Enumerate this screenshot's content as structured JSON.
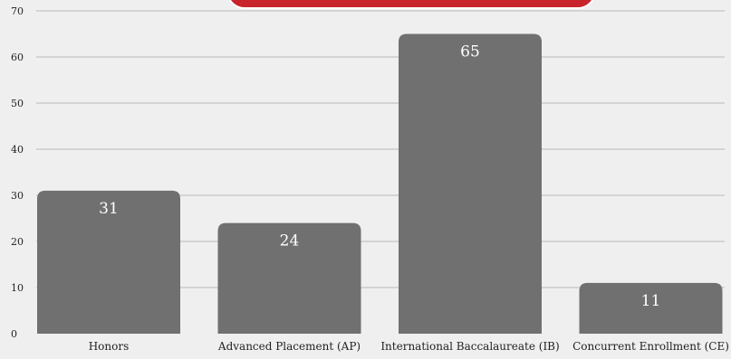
{
  "chart_data": {
    "type": "bar",
    "categories": [
      "Honors",
      "Advanced Placement (AP)",
      "International Baccalaureate (IB)",
      "Concurrent Enrollment (CE)"
    ],
    "values": [
      31,
      24,
      65,
      11
    ],
    "value_labels": [
      "31",
      "24",
      "65",
      "11"
    ],
    "ylim": [
      0,
      70
    ],
    "yticks": [
      0,
      10,
      20,
      30,
      40,
      50,
      60,
      70
    ],
    "ytick_labels": [
      "0",
      "10",
      "20",
      "30",
      "40",
      "50",
      "60",
      "70"
    ],
    "grid": true,
    "title": "",
    "xlabel": "",
    "ylabel": ""
  },
  "colors": {
    "background": "#efefef",
    "bar": "#707070",
    "gridline": "#b9b9b9",
    "banner": "#c8242c",
    "value_label": "#ffffff",
    "axis_text": "#222222"
  }
}
